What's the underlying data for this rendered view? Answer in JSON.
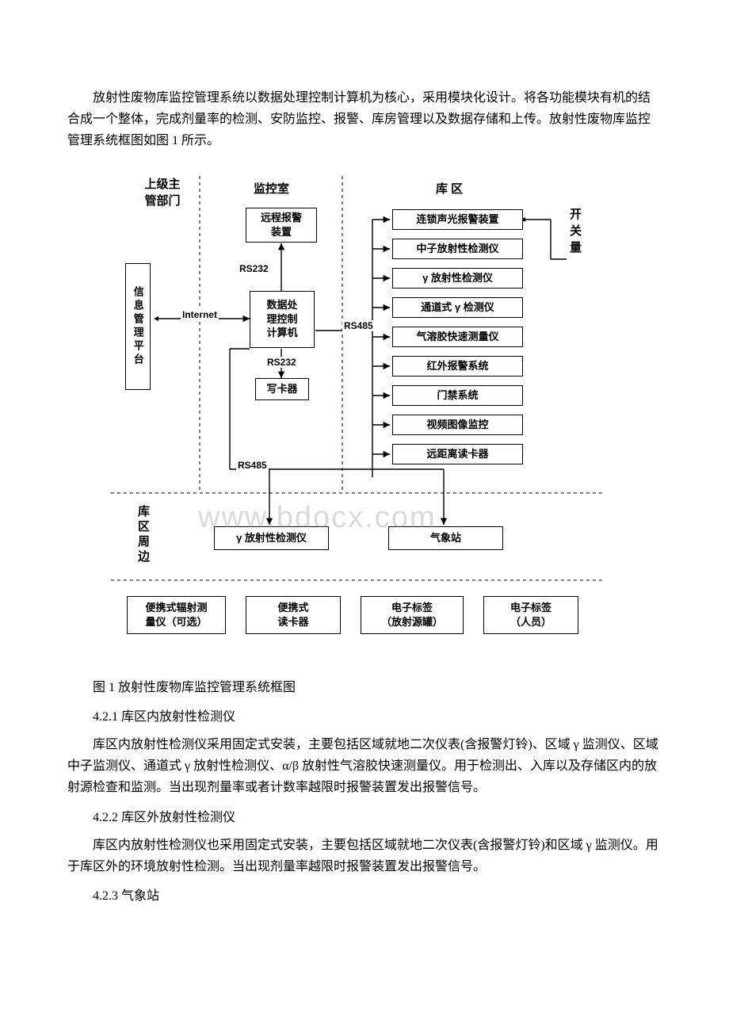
{
  "intro": "放射性废物库监控管理系统以数据处理控制计算机为核心，采用模块化设计。将各功能模块有机的结合成一个整体，完成剂量率的检测、安防监控、报警、库房管理以及数据存储和上传。放射性废物库监控管理系统框图如图 1 所示。",
  "caption": "图 1 放射性废物库监控管理系统框图",
  "h1": "4.2.1 库区内放射性检测仪",
  "p1": "库区内放射性检测仪采用固定式安装，主要包括区域就地二次仪表(含报警灯铃)、区域 γ 监测仪、区域中子监测仪、通道式 γ 放射性检测仪、α/β 放射性气溶胶快速测量仪。用于检测出、入库以及存储区内的放射源检查和监测。当出现剂量率或者计数率越限时报警装置发出报警信号。",
  "h2": "4.2.2 库区外放射性检测仪",
  "p2": "库区内放射性检测仪也采用固定式安装，主要包括区域就地二次仪表(含报警灯铃)和区域 γ 监测仪。用于库区外的环境放射性检测。当出现剂量率越限时报警装置发出报警信号。",
  "h3": "4.2.3 气象站",
  "watermark": "www.bdocx.com",
  "diagram": {
    "headers": {
      "mgmt": "上级主\n管部门",
      "ctrl": "监控室",
      "depot": "库  区"
    },
    "left": {
      "platform": "信息管理平台"
    },
    "center": {
      "alarm": "远程报警\n装置",
      "cpu": "数据处\n理控制\n计算机",
      "writer": "写卡器"
    },
    "right_list": [
      "连锁声光报警装置",
      "中子放射性检测仪",
      "γ 放射性检测仪",
      "通道式 γ 检测仪",
      "气溶胶快速测量仪",
      "红外报警系统",
      "门禁系统",
      "视频图像监控",
      "远距离读卡器"
    ],
    "right_side": "开关量",
    "conn": {
      "rs232a": "RS232",
      "internet": "Internet",
      "rs485a": "RS485",
      "rs232b": "RS232",
      "rs485b": "RS485"
    },
    "around_label": "库区周边",
    "around": {
      "gamma": "γ 放射性检测仪",
      "weather": "气象站"
    },
    "bottom": [
      "便携式辐射测\n量仪（可选）",
      "便携式\n读卡器",
      "电子标签\n（放射源罐）",
      "电子标签\n（人员）"
    ]
  }
}
